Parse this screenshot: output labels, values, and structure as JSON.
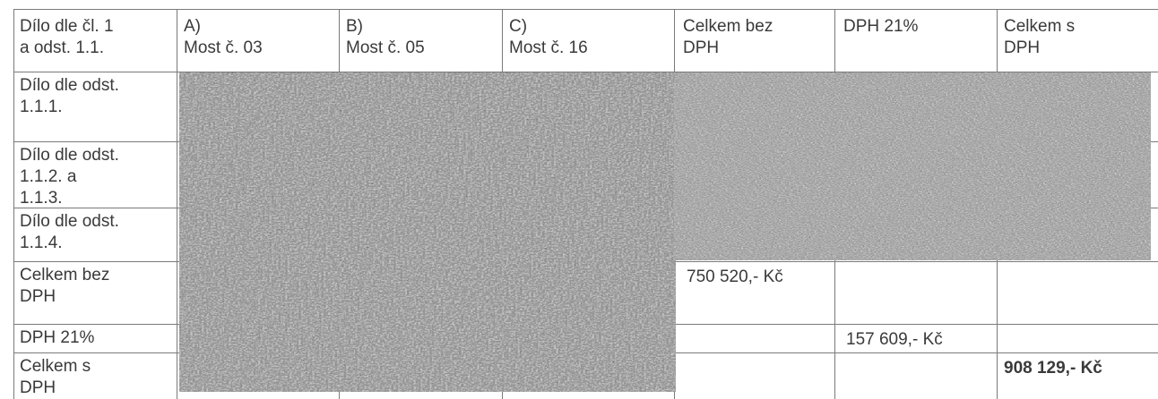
{
  "table": {
    "header": {
      "col0": "Dílo dle čl. 1\na odst. 1.1.",
      "colA": "A)\nMost č. 03",
      "colB": "B)\nMost č. 05",
      "colC": "C)\nMost č. 16",
      "col_total_no_vat": "Celkem bez\nDPH",
      "col_vat": "DPH 21%",
      "col_total_vat": "Celkem s\nDPH"
    },
    "rows": [
      {
        "label": "Dílo dle odst.\n1.1.1."
      },
      {
        "label": "Dílo dle odst.\n1.1.2. a\n1.1.3."
      },
      {
        "label": "Dílo dle odst.\n1.1.4."
      },
      {
        "label": "Celkem bez\nDPH",
        "total_no_vat": "750 520,- Kč"
      },
      {
        "label": "DPH 21%",
        "vat": "157 609,- Kč"
      },
      {
        "label": "Celkem s\nDPH",
        "total_vat": "908 129,- Kč"
      }
    ]
  },
  "redaction_color": "#8c8c8c"
}
